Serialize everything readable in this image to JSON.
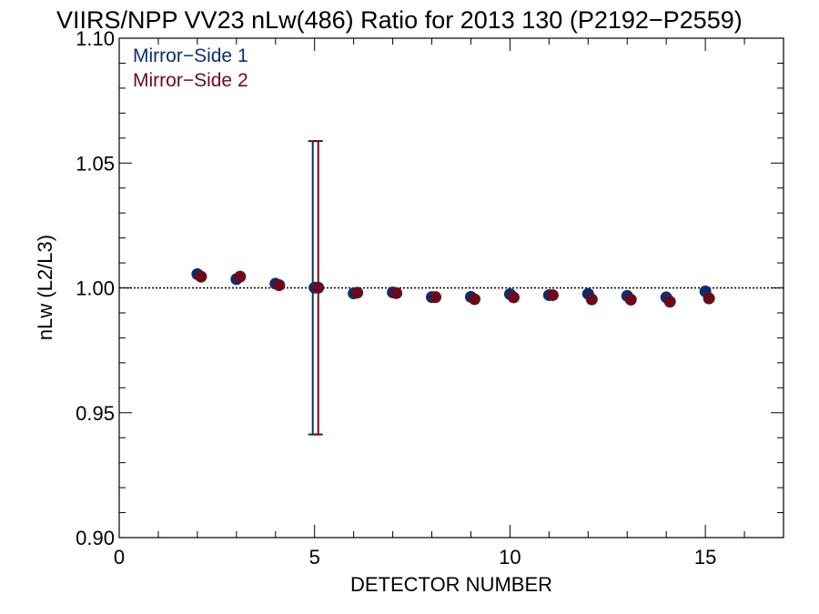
{
  "chart_data": {
    "type": "scatter",
    "title": "VIIRS/NPP VV23 nLw(486) Ratio for 2013 130 (P2192−P2559)",
    "xlabel": "DETECTOR NUMBER",
    "ylabel": "nLw (L2/L3)",
    "xlim": [
      0,
      17
    ],
    "ylim": [
      0.9,
      1.1
    ],
    "xticks": [
      0,
      5,
      10,
      15
    ],
    "xtick_labels": [
      "0",
      "5",
      "10",
      "15"
    ],
    "yticks": [
      0.9,
      0.95,
      1.0,
      1.05,
      1.1
    ],
    "ytick_labels": [
      "0.90",
      "0.95",
      "1.00",
      "1.05",
      "1.10"
    ],
    "reference_line": 1.0,
    "grid": false,
    "legend_position": "top-left",
    "series": [
      {
        "name": "Mirror−Side 1",
        "color": "#0b2f6e",
        "x": [
          2,
          3,
          4,
          5,
          6,
          7,
          8,
          9,
          10,
          11,
          12,
          13,
          14,
          15
        ],
        "y": [
          1.0055,
          1.0035,
          1.0017,
          1.0001,
          0.9978,
          0.9982,
          0.9963,
          0.9964,
          0.9975,
          0.9971,
          0.9976,
          0.9968,
          0.9962,
          0.9986
        ],
        "error_bar": {
          "x": 5,
          "low": 0.9413,
          "high": 1.0588
        }
      },
      {
        "name": "Mirror−Side 2",
        "color": "#6b0b1a",
        "x": [
          2,
          3,
          4,
          5,
          6,
          7,
          8,
          9,
          10,
          11,
          12,
          13,
          14,
          15
        ],
        "y": [
          1.0045,
          1.0045,
          1.0011,
          1.0001,
          0.9981,
          0.9979,
          0.9963,
          0.9955,
          0.9962,
          0.9971,
          0.9954,
          0.9953,
          0.9945,
          0.9958
        ],
        "error_bar": {
          "x": 5,
          "low": 0.9413,
          "high": 1.0588
        }
      }
    ]
  }
}
